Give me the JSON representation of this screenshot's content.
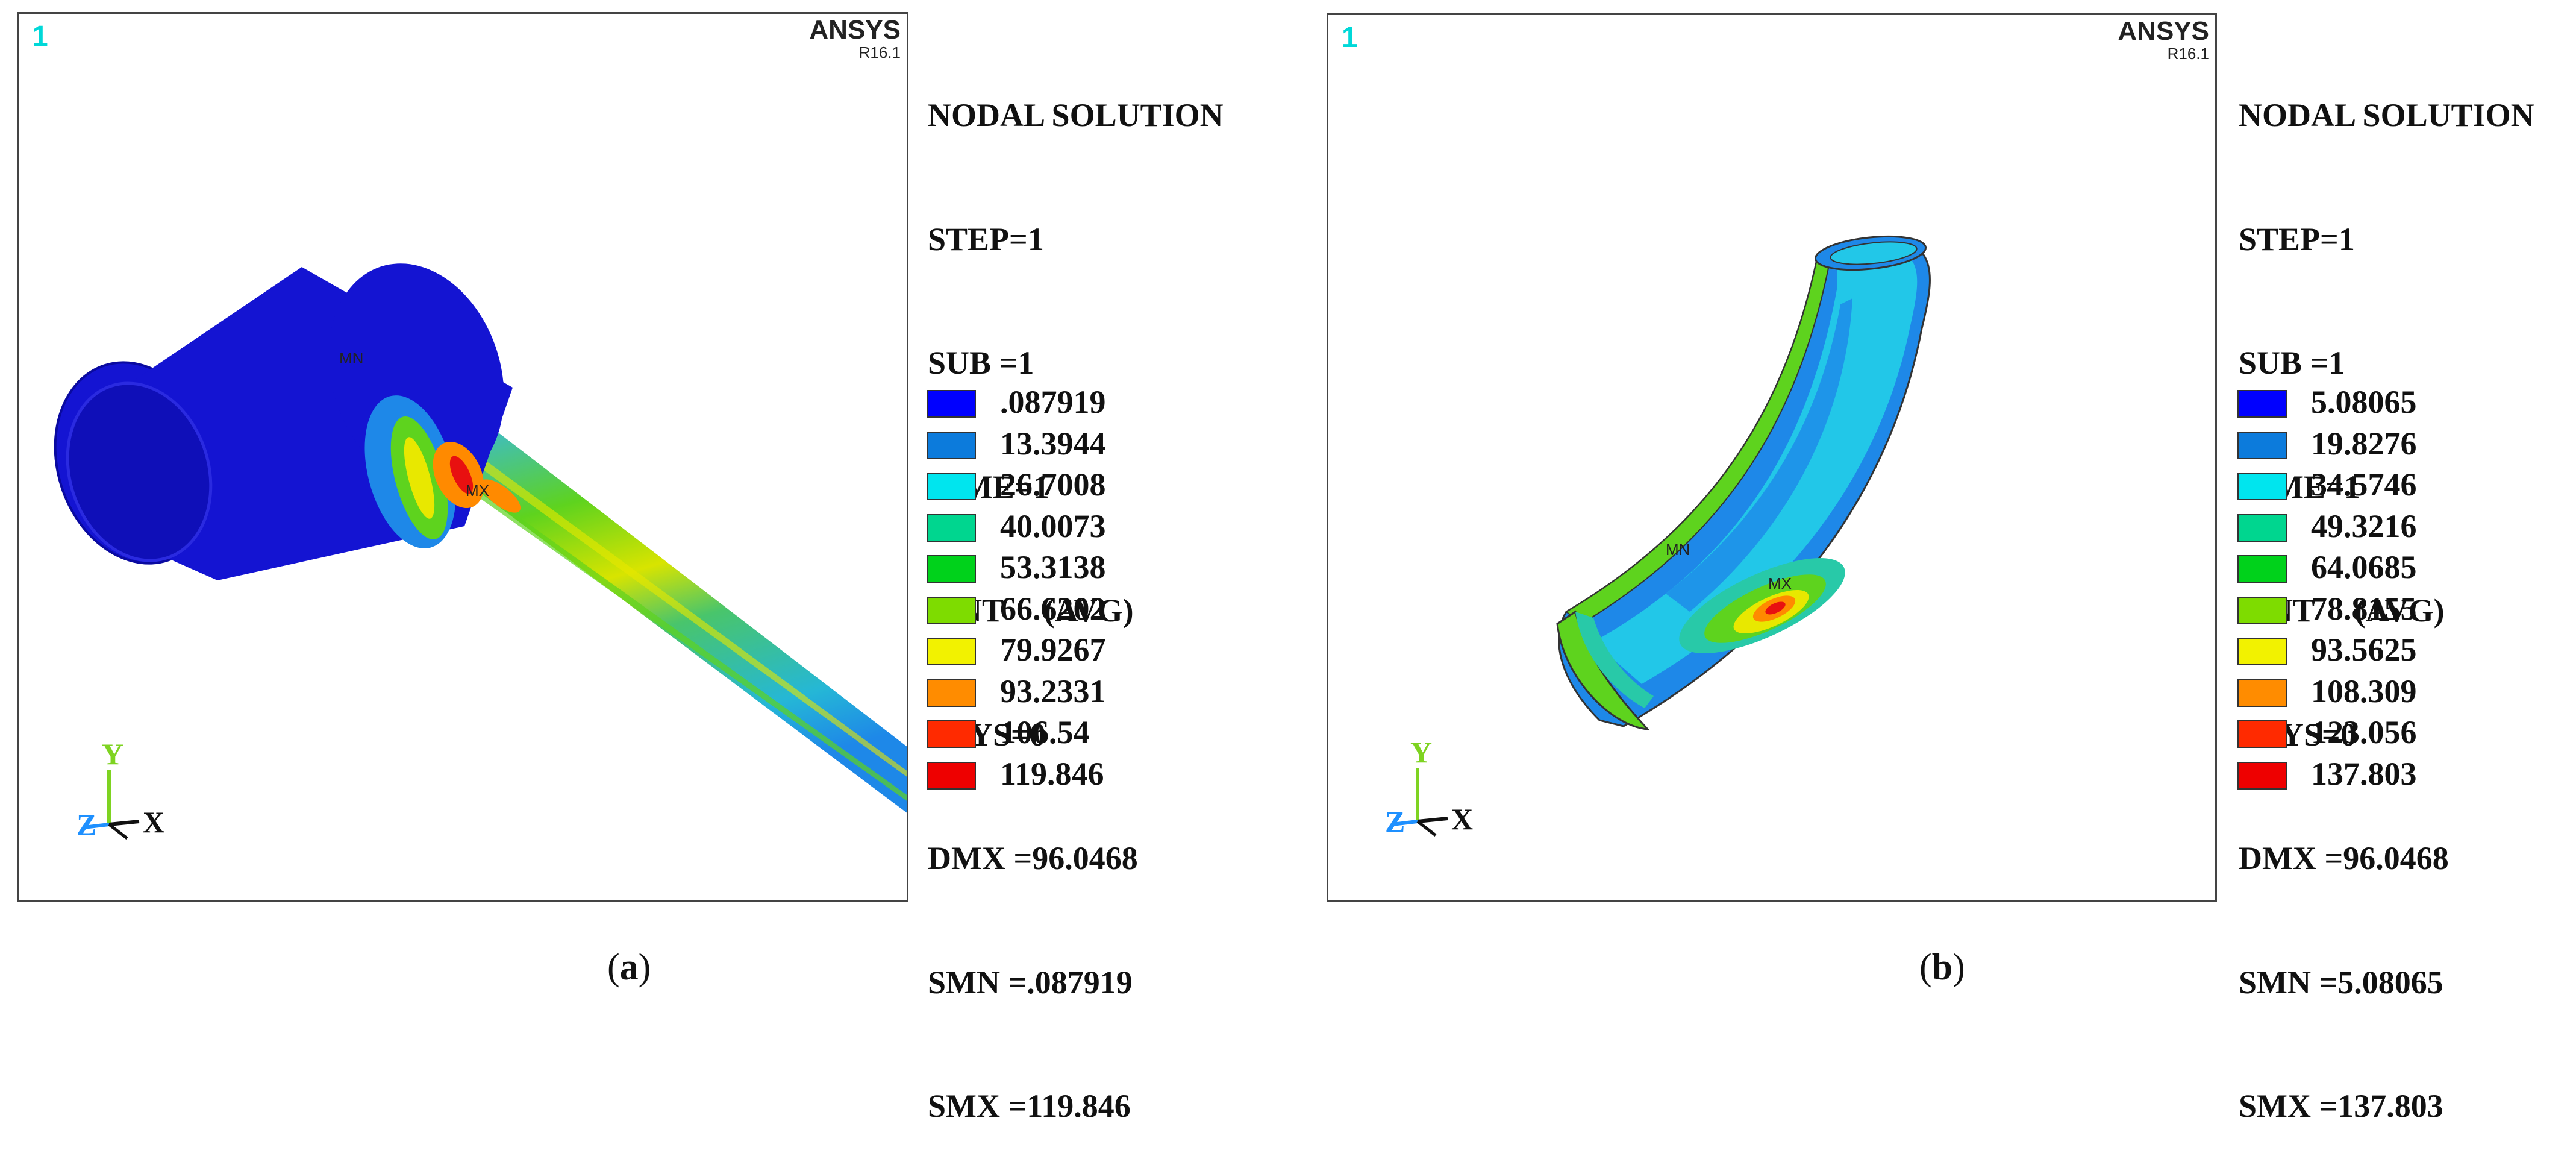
{
  "panels": [
    {
      "view_number": "1",
      "brand": "ANSYS",
      "version": "R16.1",
      "info_lines": [
        "NODAL SOLUTION",
        "STEP=1",
        "SUB =1",
        "TIME=1",
        "SINT     (AVG)",
        "RSYS=0",
        "DMX =96.0468",
        "SMN =.087919",
        "SMX =119.846"
      ],
      "legend_values": [
        ".087919",
        "13.3944",
        "26.7008",
        "40.0073",
        "53.3138",
        "66.6202",
        "79.9267",
        "93.2331",
        "106.54",
        "119.846"
      ],
      "mn_label": "MN",
      "mx_label": "MX",
      "axis_labels": {
        "y": "Y",
        "z": "Z",
        "x": "X"
      },
      "caption_open": "(",
      "caption_letter": "a",
      "caption_close": ")"
    },
    {
      "view_number": "1",
      "brand": "ANSYS",
      "version": "R16.1",
      "info_lines": [
        "NODAL SOLUTION",
        "STEP=1",
        "SUB =1",
        "TIME=1",
        "SINT     (AVG)",
        "RSYS=0",
        "DMX =96.0468",
        "SMN =5.08065",
        "SMX =137.803"
      ],
      "legend_values": [
        "5.08065",
        "19.8276",
        "34.5746",
        "49.3216",
        "64.0685",
        "78.8155",
        "93.5625",
        "108.309",
        "123.056",
        "137.803"
      ],
      "mn_label": "MN",
      "mx_label": "MX",
      "axis_labels": {
        "y": "Y",
        "z": "Z",
        "x": "X"
      },
      "caption_open": "(",
      "caption_letter": "b",
      "caption_close": ")"
    }
  ],
  "legend_colors": [
    "#0000ff",
    "#0c7bdc",
    "#00e5ee",
    "#00d68f",
    "#00d21b",
    "#7edc00",
    "#f2f200",
    "#ff8c00",
    "#ff2a00",
    "#ee0000"
  ],
  "model_colors": {
    "dark_blue": "#1414d2",
    "mid_blue": "#1e88e8",
    "cyan": "#22c7e8",
    "teal": "#28c9a8",
    "green": "#5ed31e",
    "yellow": "#e8e800",
    "orange": "#ff8a00",
    "red": "#e81010"
  },
  "axis_colors": {
    "x": "#111111",
    "y": "#7ed321",
    "z": "#1e90ff"
  }
}
